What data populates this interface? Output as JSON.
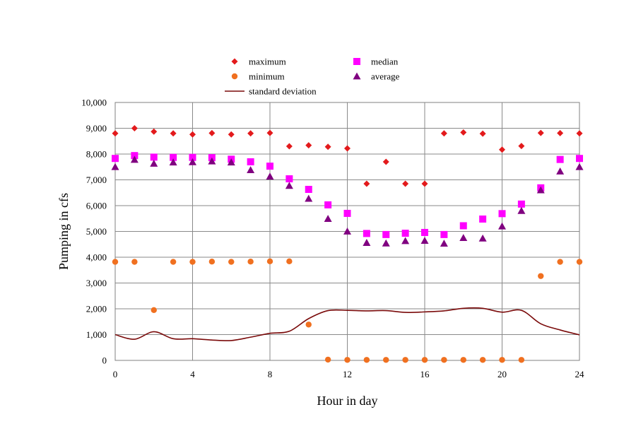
{
  "chart_data": {
    "type": "scatter",
    "xlabel": "Hour in day",
    "ylabel": "Pumping in cfs",
    "xlim": [
      0,
      24
    ],
    "ylim": [
      0,
      10000
    ],
    "x_ticks": [
      0,
      4,
      8,
      12,
      16,
      20,
      24
    ],
    "x_tick_labels": [
      "0",
      "4",
      "8",
      "12",
      "16",
      "20",
      "24"
    ],
    "y_ticks": [
      0,
      1000,
      2000,
      3000,
      4000,
      5000,
      6000,
      7000,
      8000,
      9000,
      10000
    ],
    "y_tick_labels": [
      "0",
      "1,000",
      "2,000",
      "3,000",
      "4,000",
      "5,000",
      "6,000",
      "7,000",
      "8,000",
      "9,000",
      "10,000"
    ],
    "grid": true,
    "legend_position": "top-center",
    "x": [
      0,
      1,
      2,
      3,
      4,
      5,
      6,
      7,
      8,
      9,
      10,
      11,
      12,
      13,
      14,
      15,
      16,
      17,
      18,
      19,
      20,
      21,
      22,
      23,
      24
    ],
    "series": [
      {
        "name": "maximum",
        "marker": "diamond",
        "color": "#e31a1c",
        "values": [
          8800,
          9000,
          8870,
          8800,
          8760,
          8810,
          8760,
          8800,
          8820,
          8300,
          8340,
          8280,
          8220,
          6850,
          7700,
          6850,
          6850,
          8800,
          8840,
          8790,
          8170,
          8310,
          8820,
          8810,
          8800
        ]
      },
      {
        "name": "median",
        "marker": "square",
        "color": "#ff00ff",
        "values": [
          7830,
          7940,
          7880,
          7870,
          7870,
          7860,
          7800,
          7700,
          7530,
          7040,
          6630,
          6030,
          5700,
          4920,
          4880,
          4930,
          4960,
          4880,
          5220,
          5480,
          5690,
          6060,
          6690,
          7790,
          7830
        ]
      },
      {
        "name": "minimum",
        "marker": "circle",
        "color": "#f07020",
        "values": [
          3820,
          3820,
          1950,
          3820,
          3820,
          3830,
          3820,
          3830,
          3840,
          3840,
          1390,
          30,
          20,
          20,
          20,
          20,
          20,
          20,
          20,
          20,
          20,
          20,
          3270,
          3820,
          3820
        ]
      },
      {
        "name": "average",
        "marker": "triangle",
        "color": "#800080",
        "values": [
          7500,
          7780,
          7630,
          7680,
          7690,
          7720,
          7680,
          7380,
          7130,
          6770,
          6270,
          5490,
          5000,
          4560,
          4540,
          4630,
          4640,
          4530,
          4750,
          4730,
          5200,
          5800,
          6600,
          7330,
          7500
        ]
      },
      {
        "name": "standard deviation",
        "marker": "line",
        "color": "#7a0a0a",
        "values": [
          1000,
          820,
          1110,
          840,
          840,
          790,
          770,
          900,
          1050,
          1130,
          1620,
          1930,
          1940,
          1920,
          1930,
          1860,
          1880,
          1920,
          2020,
          2020,
          1870,
          1940,
          1420,
          1180,
          990
        ]
      }
    ]
  }
}
